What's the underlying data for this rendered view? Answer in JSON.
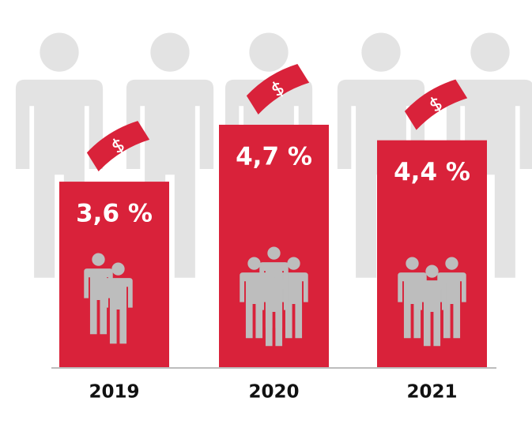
{
  "chart_data": {
    "type": "bar",
    "categories": [
      "2019",
      "2020",
      "2021"
    ],
    "values": [
      3.6,
      4.7,
      4.4
    ],
    "value_labels": [
      "3,6 %",
      "4,7 %",
      "4,4 %"
    ],
    "color": "#d9223a"
  }
}
